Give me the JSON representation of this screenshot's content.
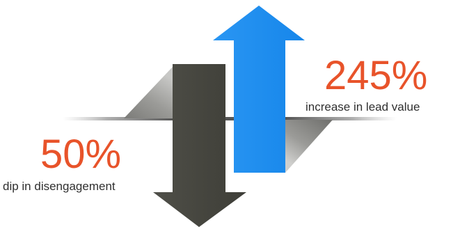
{
  "stats": {
    "increase": {
      "value": "245%",
      "caption": "increase in lead value"
    },
    "dip": {
      "value": "50%",
      "caption": "dip in disengagement"
    }
  },
  "colors": {
    "accent_text": "#e8532a",
    "caption_text": "#2f2f2f",
    "up_arrow": "#1a8cf0",
    "down_arrow": "#4a4a44",
    "shadow": "#8a8a86"
  },
  "icons": {
    "up": "up-arrow-icon",
    "down": "down-arrow-icon"
  }
}
